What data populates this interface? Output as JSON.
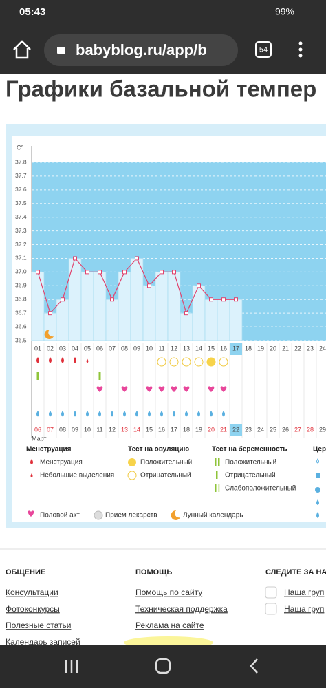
{
  "status_bar": {
    "time": "05:43",
    "battery": "99%"
  },
  "browser": {
    "url": "babyblog.ru/app/b",
    "tabs": "54"
  },
  "heading": "Графики базальной темпер",
  "chart_data": {
    "type": "line",
    "y_label": "C°",
    "categories": [
      "01",
      "02",
      "03",
      "04",
      "05",
      "06",
      "07",
      "08",
      "09",
      "10",
      "11",
      "12",
      "13",
      "14",
      "15",
      "16",
      "17",
      "18",
      "19",
      "20",
      "21",
      "22",
      "23",
      "24"
    ],
    "values": [
      37.0,
      36.7,
      36.8,
      37.1,
      37.0,
      37.0,
      36.8,
      37.0,
      37.1,
      36.9,
      37.0,
      37.0,
      36.7,
      36.9,
      36.8,
      36.8,
      36.8,
      null,
      null,
      null,
      null,
      null,
      null,
      null
    ],
    "color": "#e0446e",
    "ylim": [
      36.5,
      37.8
    ],
    "yticks": [
      36.5,
      36.6,
      36.7,
      36.8,
      36.9,
      {
        "value": 37,
        "label": "37.0"
      },
      37.1,
      37.2,
      37.3,
      37.4,
      37.5,
      37.6,
      37.7,
      37.8
    ],
    "grid": true,
    "current_day": "17",
    "dates": [
      "06",
      "07",
      "08",
      "09",
      "10",
      "11",
      "12",
      "13",
      "14",
      "15",
      "16",
      "17",
      "18",
      "19",
      "20",
      "21",
      "22",
      "23",
      "24",
      "25",
      "26",
      "27",
      "28",
      "29"
    ],
    "weekend_dates": [
      "06",
      "07",
      "13",
      "14",
      "20",
      "21",
      "27",
      "28"
    ],
    "today": "22",
    "month": "Март",
    "menstruation_days": [
      "01",
      "02",
      "03",
      "04"
    ],
    "light_discharge_days": [
      "05"
    ],
    "pregnancy_negative_days": [
      "01",
      "06"
    ],
    "ovulation_negative_days": [
      "11",
      "12",
      "13",
      "14",
      "16"
    ],
    "ovulation_positive_days": [
      "15"
    ],
    "intercourse_days": [
      "06",
      "08",
      "10",
      "11",
      "12",
      "13",
      "15",
      "16"
    ],
    "cervix_days": [
      "01",
      "02",
      "03",
      "04",
      "05",
      "06",
      "07",
      "08",
      "09",
      "10",
      "11",
      "12",
      "13",
      "14",
      "15",
      "16"
    ],
    "moon_days": [
      "02"
    ]
  },
  "legend": {
    "menstruation": {
      "title": "Менструация",
      "items": [
        "Менструация",
        "Небольшие выделения"
      ]
    },
    "ovulation": {
      "title": "Тест на овуляцию",
      "items": [
        "Положительный",
        "Отрицательный"
      ]
    },
    "pregnancy": {
      "title": "Тест на беременность",
      "items": [
        "Положительный",
        "Отрицательный",
        "Слабоположительный"
      ]
    },
    "cervix": {
      "title": "Цер"
    },
    "other": [
      "Половой акт",
      "Прием лекарств",
      "Лунный календарь"
    ]
  },
  "footer": {
    "columns": [
      {
        "title": "ОБЩЕНИЕ",
        "links": [
          "Консультации",
          "Фотоконкурсы",
          "Полезные статьи",
          "Календарь записей"
        ]
      },
      {
        "title": "ПОМОЩЬ",
        "links": [
          "Помощь по сайту",
          "Техническая поддержка",
          "Реклама на сайте"
        ]
      },
      {
        "title": "СЛЕДИТЕ ЗА НАМИ",
        "links": [
          "Наша груп",
          "Наша груп"
        ]
      }
    ]
  }
}
